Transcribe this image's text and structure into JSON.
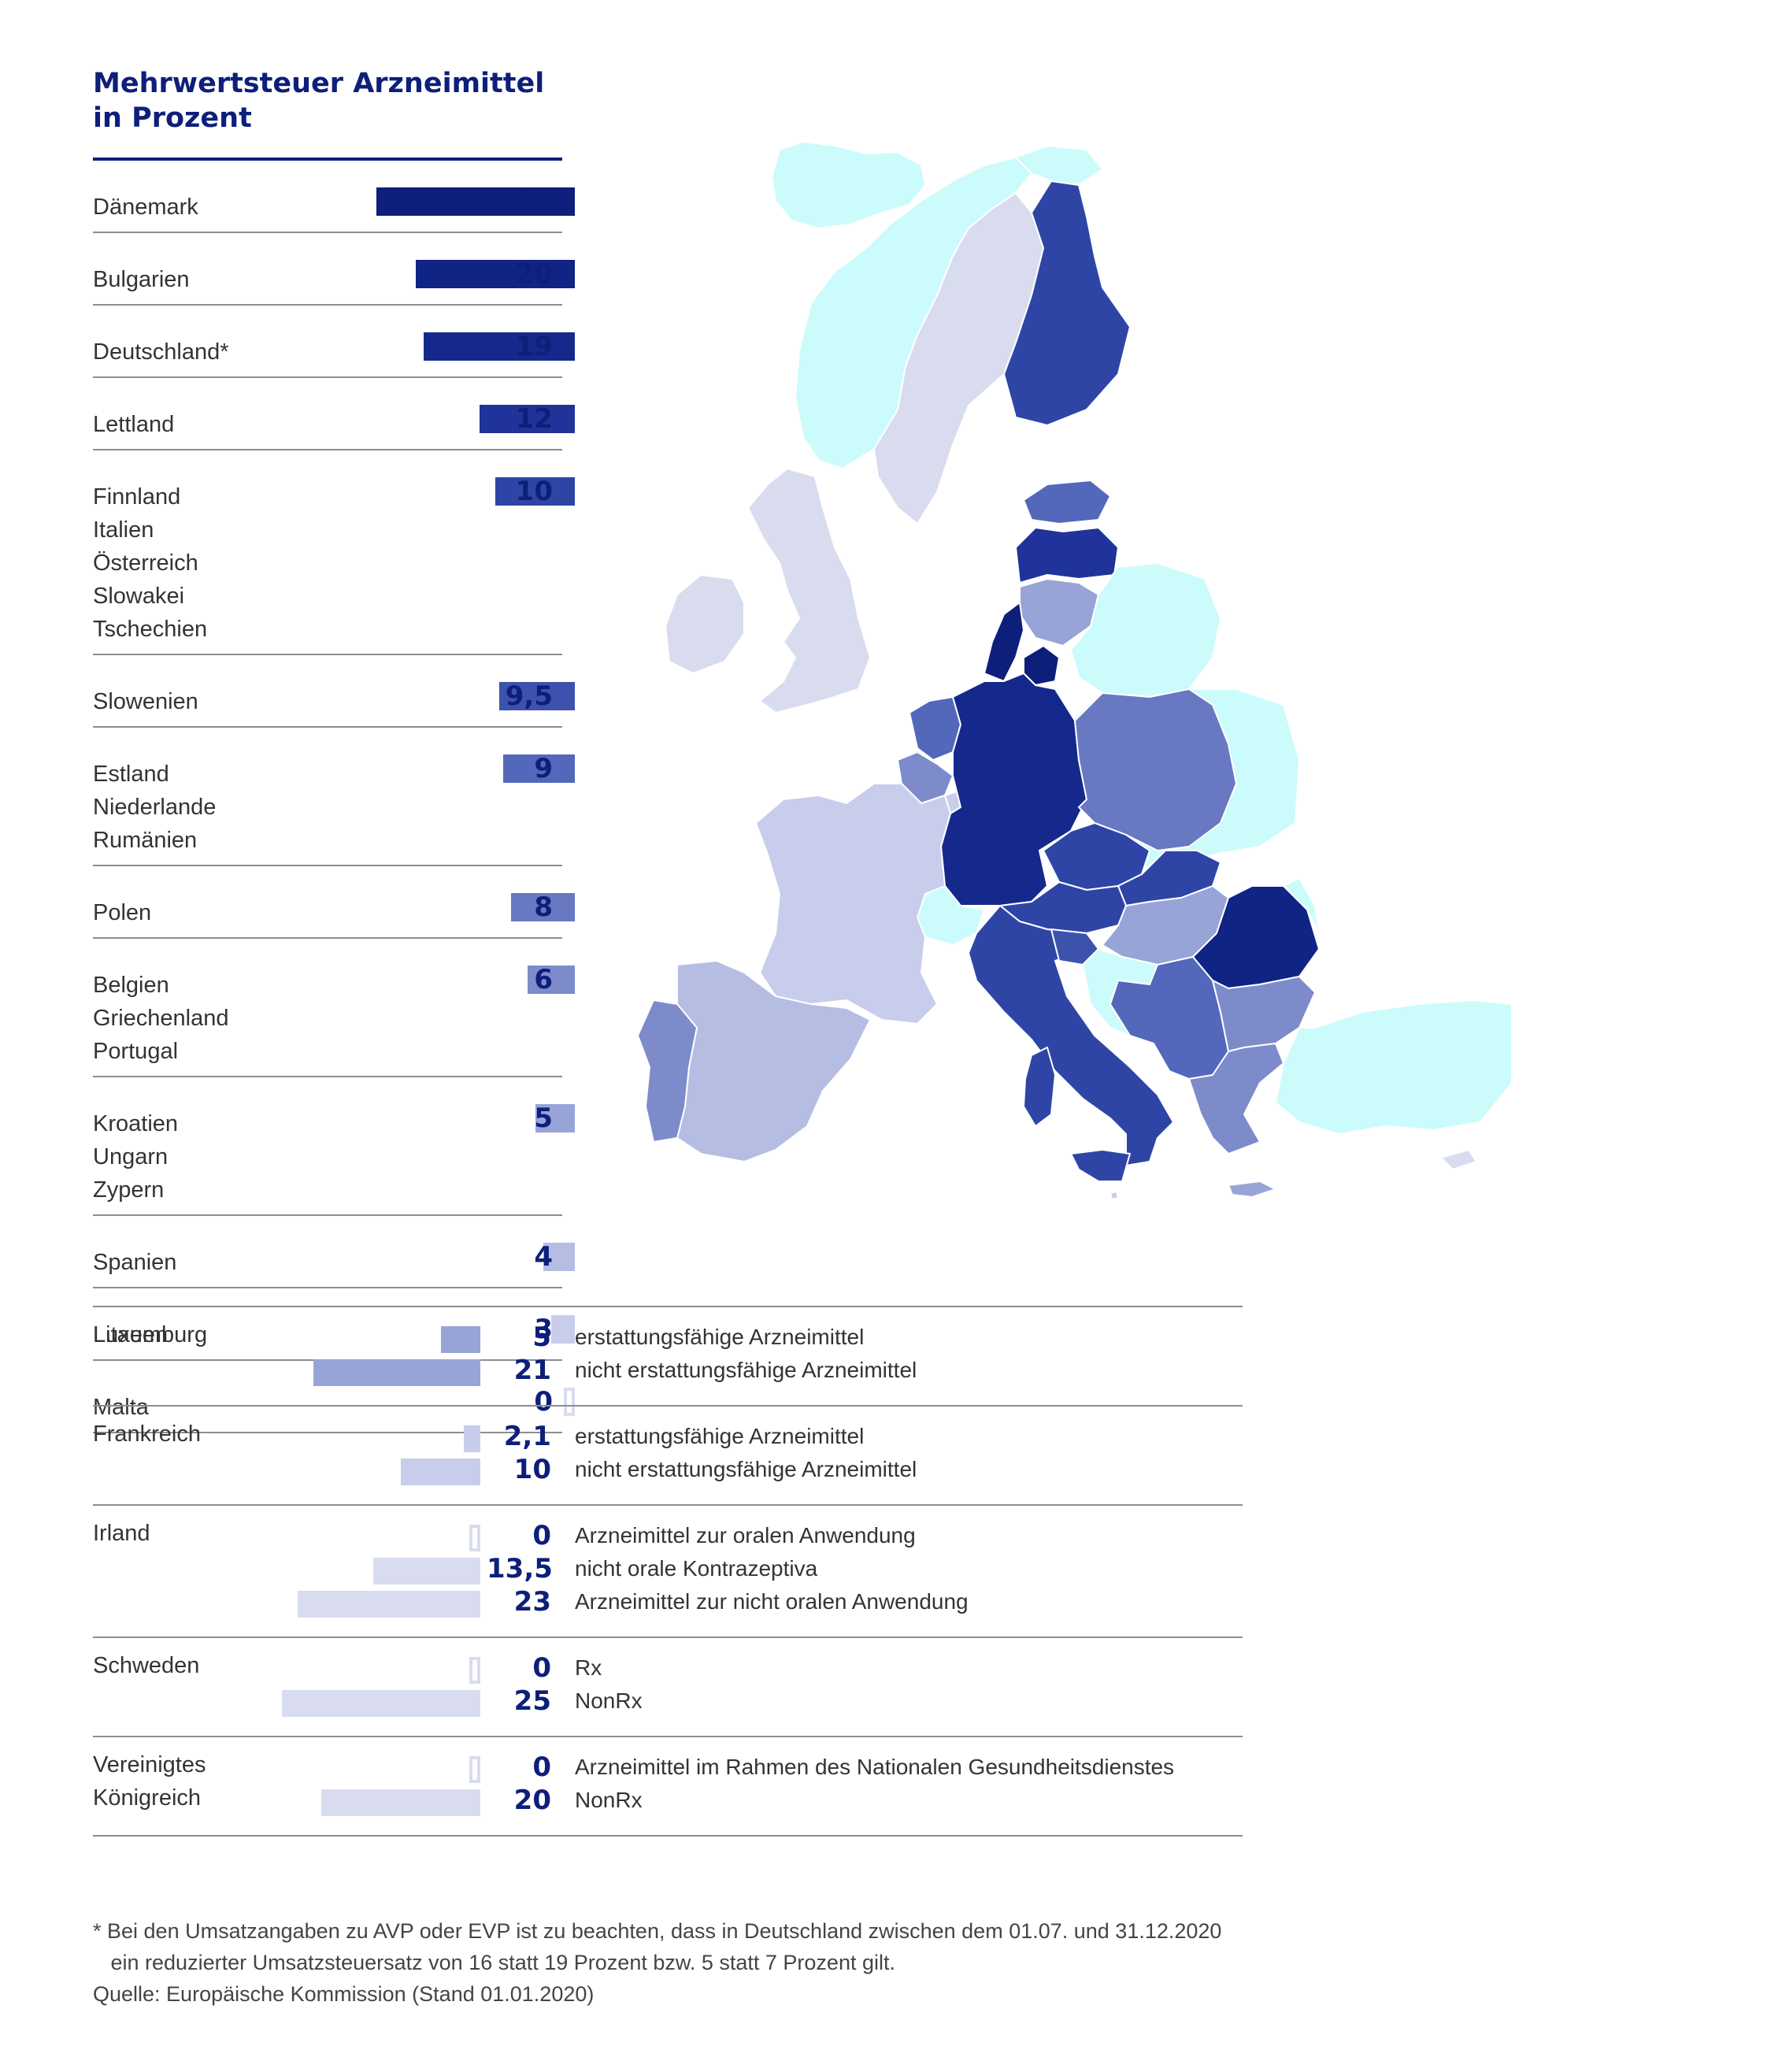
{
  "title_line1": "Mehrwertsteuer Arzneimittel",
  "title_line2": "in Prozent",
  "colors": {
    "accent": "#0d1f7a",
    "rule": "#8e8e8e",
    "non_eu": "#ccfbfb"
  },
  "chart_data": [
    {
      "type": "bar",
      "orientation": "horizontal",
      "title": "Mehrwertsteuer Arzneimittel in Prozent",
      "xlim": [
        0,
        25
      ],
      "rows": [
        {
          "countries": [
            "Dänemark"
          ],
          "value": 25,
          "label": "25",
          "color": "#0d1f7a"
        },
        {
          "countries": [
            "Bulgarien"
          ],
          "value": 20,
          "label": "20",
          "color": "#0f2484"
        },
        {
          "countries": [
            "Deutschland*"
          ],
          "value": 19,
          "label": "19",
          "color": "#15298c"
        },
        {
          "countries": [
            "Lettland"
          ],
          "value": 12,
          "label": "12",
          "color": "#1f339a"
        },
        {
          "countries": [
            "Finnland",
            "Italien",
            "Österreich",
            "Slowakei",
            "Tschechien"
          ],
          "value": 10,
          "label": "10",
          "color": "#2f45a6"
        },
        {
          "countries": [
            "Slowenien"
          ],
          "value": 9.5,
          "label": "9,5",
          "color": "#3d52ad"
        },
        {
          "countries": [
            "Estland",
            "Niederlande",
            "Rumänien"
          ],
          "value": 9,
          "label": "9",
          "color": "#5367bb"
        },
        {
          "countries": [
            "Polen"
          ],
          "value": 8,
          "label": "8",
          "color": "#6878c3"
        },
        {
          "countries": [
            "Belgien",
            "Griechenland",
            "Portugal"
          ],
          "value": 6,
          "label": "6",
          "color": "#7d8bcb"
        },
        {
          "countries": [
            "Kroatien",
            "Ungarn",
            "Zypern"
          ],
          "value": 5,
          "label": "5",
          "color": "#98a4d8"
        },
        {
          "countries": [
            "Spanien"
          ],
          "value": 4,
          "label": "4",
          "color": "#b6bde3"
        },
        {
          "countries": [
            "Luxemburg"
          ],
          "value": 3,
          "label": "3",
          "color": "#c7cdeb"
        },
        {
          "countries": [
            "Malta"
          ],
          "value": 0,
          "label": "0",
          "color": "#d9dcef"
        }
      ]
    },
    {
      "type": "bar",
      "orientation": "horizontal",
      "xlim": [
        0,
        25
      ],
      "groups": [
        {
          "country": "Litauen",
          "items": [
            {
              "value": 5,
              "label": "5",
              "text": "erstattungsfähige Arzneimittel",
              "color": "#98a4d8"
            },
            {
              "value": 21,
              "label": "21",
              "text": "nicht erstattungsfähige Arzneimittel",
              "color": "#98a4d8"
            }
          ]
        },
        {
          "country": "Frankreich",
          "items": [
            {
              "value": 2.1,
              "label": "2,1",
              "text": "erstattungsfähige Arzneimittel",
              "color": "#c7cdeb"
            },
            {
              "value": 10,
              "label": "10",
              "text": "nicht erstattungsfähige Arzneimittel",
              "color": "#c7cdeb"
            }
          ]
        },
        {
          "country": "Irland",
          "items": [
            {
              "value": 0,
              "label": "0",
              "text": "Arzneimittel zur oralen Anwendung",
              "color": "#d9dcef"
            },
            {
              "value": 13.5,
              "label": "13,5",
              "text": "nicht orale Kontrazeptiva",
              "color": "#d9dcef"
            },
            {
              "value": 23,
              "label": "23",
              "text": "Arzneimittel zur nicht oralen Anwendung",
              "color": "#d9dcef"
            }
          ]
        },
        {
          "country": "Schweden",
          "items": [
            {
              "value": 0,
              "label": "0",
              "text": "Rx",
              "color": "#d9dcef"
            },
            {
              "value": 25,
              "label": "25",
              "text": "NonRx",
              "color": "#d9dcef"
            }
          ]
        },
        {
          "country": "Vereinigtes\nKönigreich",
          "items": [
            {
              "value": 0,
              "label": "0",
              "text": "Arzneimittel im Rahmen des Nationalen Gesundheitsdienstes",
              "color": "#d9dcef"
            },
            {
              "value": 20,
              "label": "20",
              "text": "NonRx",
              "color": "#d9dcef"
            }
          ]
        }
      ]
    }
  ],
  "footnote": "* Bei den Umsatzangaben zu AVP oder EVP ist zu beachten, dass in Deutschland zwischen dem 01.07. und 31.12.2020\n   ein reduzierter Umsatzsteuersatz von 16 statt 19 Prozent bzw. 5 statt 7 Prozent gilt.",
  "source": "Quelle: Europäische Kommission (Stand 01.01.2020)",
  "map_regions": [
    {
      "name": "Island",
      "color": "#ccfbfb"
    },
    {
      "name": "Norwegen",
      "color": "#ccfbfb"
    },
    {
      "name": "Schweden",
      "color": "#d9dcef"
    },
    {
      "name": "Finnland",
      "color": "#2f45a6"
    },
    {
      "name": "Estland",
      "color": "#5367bb"
    },
    {
      "name": "Lettland",
      "color": "#1f339a"
    },
    {
      "name": "Litauen",
      "color": "#98a4d8"
    },
    {
      "name": "Vereinigtes Königreich",
      "color": "#d9dcef"
    },
    {
      "name": "Irland",
      "color": "#d9dcef"
    },
    {
      "name": "Dänemark",
      "color": "#0d1f7a"
    },
    {
      "name": "Niederlande",
      "color": "#5367bb"
    },
    {
      "name": "Belgien",
      "color": "#7d8bcb"
    },
    {
      "name": "Luxemburg",
      "color": "#c7cdeb"
    },
    {
      "name": "Deutschland",
      "color": "#15298c"
    },
    {
      "name": "Polen",
      "color": "#6878c3"
    },
    {
      "name": "Tschechien",
      "color": "#2f45a6"
    },
    {
      "name": "Slowakei",
      "color": "#2f45a6"
    },
    {
      "name": "Österreich",
      "color": "#2f45a6"
    },
    {
      "name": "Schweiz",
      "color": "#ccfbfb"
    },
    {
      "name": "Frankreich",
      "color": "#c7cdeb"
    },
    {
      "name": "Spanien",
      "color": "#b6bde3"
    },
    {
      "name": "Portugal",
      "color": "#7d8bcb"
    },
    {
      "name": "Italien",
      "color": "#2f45a6"
    },
    {
      "name": "Sardinien",
      "color": "#2f45a6"
    },
    {
      "name": "Sizilien",
      "color": "#2f45a6"
    },
    {
      "name": "Korsika",
      "color": "#c7cdeb"
    },
    {
      "name": "Slowenien",
      "color": "#3d52ad"
    },
    {
      "name": "Ungarn",
      "color": "#98a4d8"
    },
    {
      "name": "Kroatien",
      "color": "#98a4d8"
    },
    {
      "name": "Westbalkan",
      "color": "#ccfbfb"
    },
    {
      "name": "Rumänien",
      "color": "#5367bb"
    },
    {
      "name": "Bulgarien",
      "color": "#0f2484"
    },
    {
      "name": "Griechenland",
      "color": "#7d8bcb"
    },
    {
      "name": "Kreta",
      "color": "#7d8bcb"
    },
    {
      "name": "Zypern",
      "color": "#98a4d8"
    },
    {
      "name": "Malta",
      "color": "#d9dcef"
    },
    {
      "name": "Belarus",
      "color": "#ccfbfb"
    },
    {
      "name": "Ukraine",
      "color": "#ccfbfb"
    },
    {
      "name": "Moldau",
      "color": "#ccfbfb"
    },
    {
      "name": "Türkei",
      "color": "#ccfbfb"
    }
  ]
}
